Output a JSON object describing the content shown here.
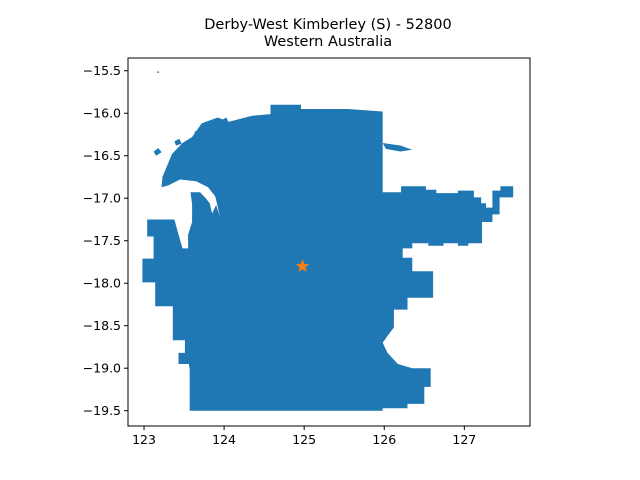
{
  "title": {
    "line1": "Derby-West Kimberley (S) - 52800",
    "line2": "Western Australia"
  },
  "colors": {
    "region_fill": "#1f77b4",
    "marker": "#ff7f0e",
    "axes": "#000000",
    "background": "#ffffff"
  },
  "chart_data": {
    "type": "map",
    "grid": false,
    "xlim": [
      122.8,
      127.82
    ],
    "ylim": [
      -19.68,
      -15.35
    ],
    "xticks": [
      123,
      124,
      125,
      126,
      127
    ],
    "yticks": [
      -15.5,
      -16.0,
      -16.5,
      -17.0,
      -17.5,
      -18.0,
      -18.5,
      -19.0,
      -19.5
    ],
    "xtick_labels": [
      "123",
      "124",
      "125",
      "126",
      "127"
    ],
    "ytick_labels": [
      "−15.5",
      "−16.0",
      "−16.5",
      "−17.0",
      "−17.5",
      "−18.0",
      "−18.5",
      "−19.0",
      "−19.5"
    ],
    "marker": {
      "shape": "star",
      "lon": 124.98,
      "lat": -17.8
    },
    "region": {
      "name": "Derby-West Kimberley (S)",
      "code": "52800",
      "state": "Western Australia",
      "outline_lonlat": [
        [
          123.23,
          -16.75
        ],
        [
          123.35,
          -16.48
        ],
        [
          123.48,
          -16.35
        ],
        [
          123.6,
          -16.28
        ],
        [
          123.72,
          -16.12
        ],
        [
          123.92,
          -16.05
        ],
        [
          124.06,
          -16.1
        ],
        [
          124.35,
          -16.03
        ],
        [
          124.58,
          -16.01
        ],
        [
          124.58,
          -15.9
        ],
        [
          124.76,
          -15.9
        ],
        [
          124.96,
          -15.9
        ],
        [
          124.96,
          -15.95
        ],
        [
          125.55,
          -15.95
        ],
        [
          125.98,
          -15.98
        ],
        [
          125.98,
          -16.45
        ],
        [
          125.98,
          -16.93
        ],
        [
          126.21,
          -16.93
        ],
        [
          126.21,
          -16.86
        ],
        [
          126.52,
          -16.86
        ],
        [
          126.52,
          -16.9
        ],
        [
          126.65,
          -16.9
        ],
        [
          126.65,
          -16.94
        ],
        [
          126.92,
          -16.94
        ],
        [
          126.92,
          -16.91
        ],
        [
          127.12,
          -16.91
        ],
        [
          127.12,
          -16.99
        ],
        [
          127.21,
          -16.99
        ],
        [
          127.21,
          -17.06
        ],
        [
          127.27,
          -17.06
        ],
        [
          127.27,
          -17.11
        ],
        [
          127.35,
          -17.11
        ],
        [
          127.35,
          -16.91
        ],
        [
          127.45,
          -16.91
        ],
        [
          127.45,
          -16.86
        ],
        [
          127.61,
          -16.86
        ],
        [
          127.61,
          -16.99
        ],
        [
          127.44,
          -16.99
        ],
        [
          127.44,
          -17.19
        ],
        [
          127.35,
          -17.19
        ],
        [
          127.35,
          -17.28
        ],
        [
          127.22,
          -17.28
        ],
        [
          127.22,
          -17.53
        ],
        [
          127.05,
          -17.53
        ],
        [
          127.05,
          -17.56
        ],
        [
          126.92,
          -17.56
        ],
        [
          126.92,
          -17.53
        ],
        [
          126.74,
          -17.53
        ],
        [
          126.74,
          -17.56
        ],
        [
          126.55,
          -17.56
        ],
        [
          126.55,
          -17.53
        ],
        [
          126.35,
          -17.53
        ],
        [
          126.35,
          -17.59
        ],
        [
          126.23,
          -17.59
        ],
        [
          126.23,
          -17.7
        ],
        [
          126.35,
          -17.7
        ],
        [
          126.35,
          -17.86
        ],
        [
          126.61,
          -17.86
        ],
        [
          126.61,
          -18.17
        ],
        [
          126.29,
          -18.17
        ],
        [
          126.29,
          -18.31
        ],
        [
          126.12,
          -18.31
        ],
        [
          126.12,
          -18.52
        ],
        [
          126.04,
          -18.62
        ],
        [
          125.98,
          -18.7
        ],
        [
          126.04,
          -18.82
        ],
        [
          126.17,
          -18.95
        ],
        [
          126.35,
          -19.0
        ],
        [
          126.58,
          -19.0
        ],
        [
          126.58,
          -19.22
        ],
        [
          126.5,
          -19.22
        ],
        [
          126.5,
          -19.42
        ],
        [
          126.29,
          -19.42
        ],
        [
          126.29,
          -19.47
        ],
        [
          125.98,
          -19.47
        ],
        [
          125.98,
          -19.5
        ],
        [
          123.57,
          -19.5
        ],
        [
          123.57,
          -19.02
        ],
        [
          123.56,
          -18.95
        ],
        [
          123.43,
          -18.95
        ],
        [
          123.43,
          -18.82
        ],
        [
          123.51,
          -18.82
        ],
        [
          123.51,
          -18.67
        ],
        [
          123.36,
          -18.67
        ],
        [
          123.36,
          -18.27
        ],
        [
          123.14,
          -18.27
        ],
        [
          123.14,
          -17.99
        ],
        [
          122.98,
          -17.99
        ],
        [
          122.98,
          -17.71
        ],
        [
          123.12,
          -17.71
        ],
        [
          123.12,
          -17.45
        ],
        [
          123.04,
          -17.45
        ],
        [
          123.04,
          -17.25
        ],
        [
          123.38,
          -17.25
        ],
        [
          123.42,
          -17.39
        ],
        [
          123.48,
          -17.59
        ],
        [
          123.55,
          -17.59
        ],
        [
          123.55,
          -17.43
        ],
        [
          123.6,
          -17.28
        ],
        [
          123.6,
          -17.07
        ],
        [
          123.58,
          -16.93
        ],
        [
          123.7,
          -16.93
        ],
        [
          123.77,
          -17.0
        ],
        [
          123.82,
          -17.06
        ],
        [
          123.85,
          -17.18
        ],
        [
          123.9,
          -17.08
        ],
        [
          123.95,
          -17.22
        ],
        [
          123.89,
          -16.98
        ],
        [
          123.8,
          -16.87
        ],
        [
          123.65,
          -16.8
        ],
        [
          123.45,
          -16.78
        ],
        [
          123.3,
          -16.85
        ],
        [
          123.22,
          -16.87
        ]
      ],
      "islands_lonlat": [
        [
          [
            123.12,
            -16.45
          ],
          [
            123.18,
            -16.41
          ],
          [
            123.22,
            -16.46
          ],
          [
            123.15,
            -16.5
          ]
        ],
        [
          [
            123.38,
            -16.33
          ],
          [
            123.44,
            -16.3
          ],
          [
            123.47,
            -16.36
          ],
          [
            123.4,
            -16.38
          ]
        ],
        [
          [
            123.63,
            -16.22
          ],
          [
            123.7,
            -16.18
          ],
          [
            123.72,
            -16.24
          ],
          [
            123.65,
            -16.26
          ]
        ],
        [
          [
            123.97,
            -16.08
          ],
          [
            124.03,
            -16.05
          ],
          [
            124.05,
            -16.1
          ],
          [
            123.99,
            -16.12
          ]
        ],
        [
          [
            125.98,
            -16.35
          ],
          [
            126.2,
            -16.38
          ],
          [
            126.35,
            -16.43
          ],
          [
            126.2,
            -16.45
          ],
          [
            126.02,
            -16.42
          ]
        ],
        [
          [
            123.16,
            -15.52
          ],
          [
            123.18,
            -15.5
          ],
          [
            123.19,
            -15.53
          ]
        ]
      ]
    }
  }
}
